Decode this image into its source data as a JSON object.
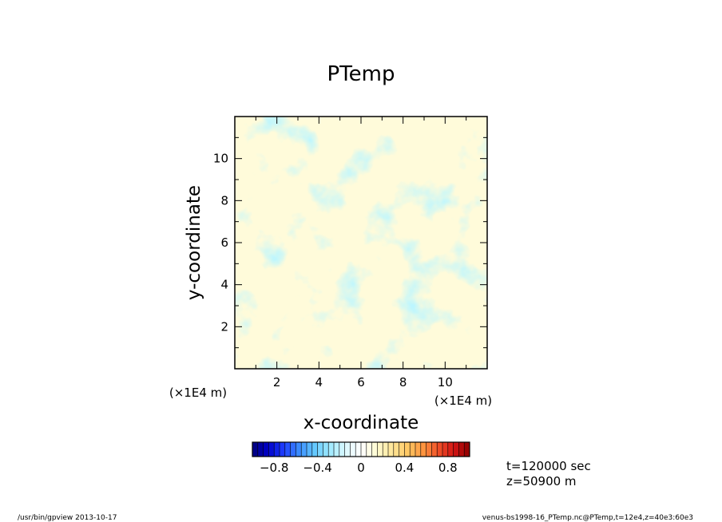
{
  "chart_data": {
    "type": "heatmap",
    "title": "PTemp",
    "xlabel": "x-coordinate",
    "ylabel": "y-coordinate",
    "x_unit": "(×1E4 m)",
    "y_unit": "(×1E4 m)",
    "xlim": [
      0,
      12
    ],
    "ylim": [
      0,
      12
    ],
    "x_ticks": [
      2,
      4,
      6,
      8,
      10
    ],
    "x_tick_labels": [
      "2",
      "4",
      "6",
      "8",
      "10"
    ],
    "y_ticks": [
      2,
      4,
      6,
      8,
      10
    ],
    "y_tick_labels": [
      "2",
      "4",
      "6",
      "8",
      "10"
    ],
    "field_range": [
      -0.25,
      0.12
    ],
    "colorbar": {
      "min": -1.0,
      "max": 1.0,
      "levels": 40,
      "ticks": [
        -0.8,
        -0.4,
        0,
        0.4,
        0.8
      ],
      "tick_labels": [
        "−0.8",
        "−0.4",
        "0",
        "0.4",
        "0.8"
      ],
      "colors": [
        "#00007a",
        "#0000c8",
        "#1e3cff",
        "#3c8cff",
        "#64c8ff",
        "#a0eaff",
        "#dcf8ff",
        "#ffffff",
        "#fffbd2",
        "#ffe69a",
        "#ffc864",
        "#ff9640",
        "#f05028",
        "#d21414",
        "#8c0000"
      ]
    },
    "annotations": {
      "time": "t=120000 sec",
      "height": "z=50900 m"
    }
  },
  "footer": {
    "left": "/usr/bin/gpview   2013-10-17",
    "right": "venus-bs1998-16_PTemp.nc@PTemp,t=12e4,z=40e3:60e3"
  }
}
